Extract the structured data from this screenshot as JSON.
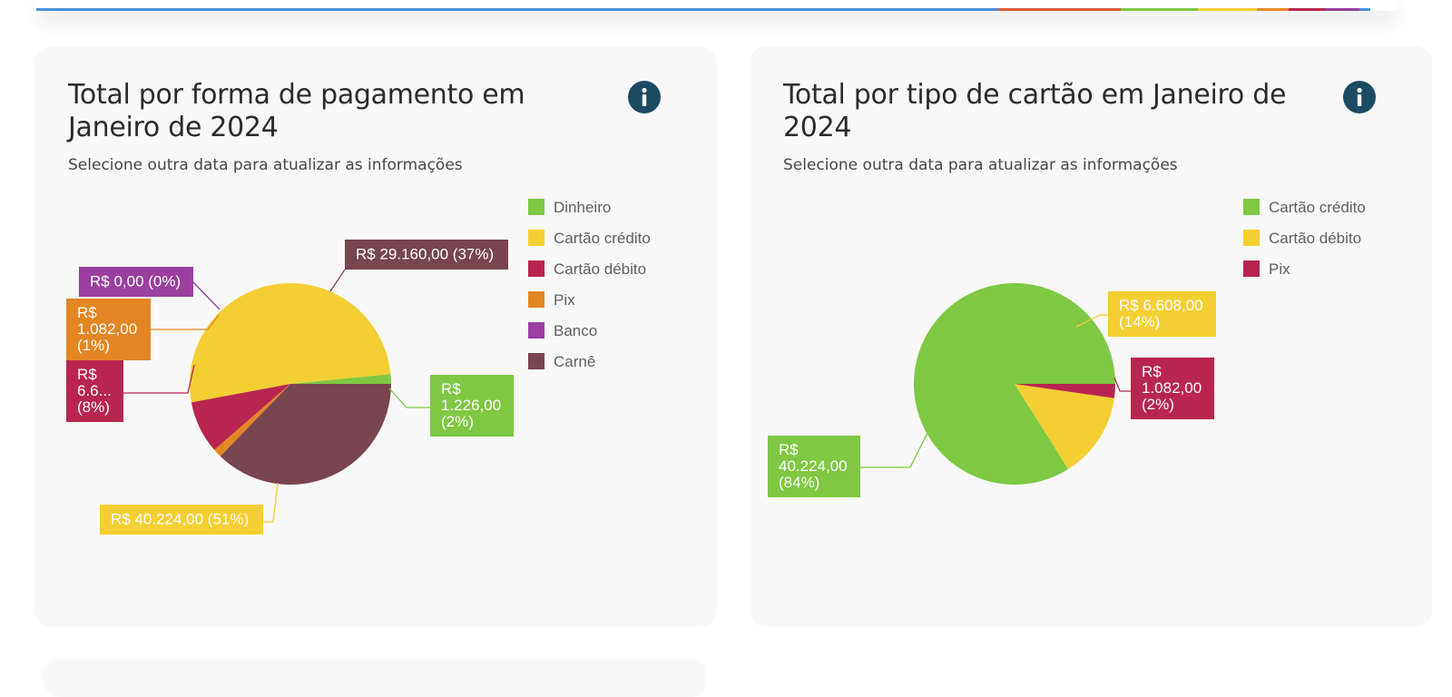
{
  "page": {
    "top_bar_colors": [
      "#4a90d9",
      "#e05a3a",
      "#7ec843",
      "#f4cf33",
      "#e38624",
      "#b8264f",
      "#9a3f9f",
      "#4a90d9"
    ]
  },
  "charts": [
    {
      "title": "Total por forma de pagamento em Janeiro de 2024",
      "subtitle": "Selecione outra data para atualizar as informações",
      "info_icon": "info-icon"
    },
    {
      "title": "Total por tipo de cartão em Janeiro de 2024",
      "subtitle": "Selecione outra data para atualizar as informações",
      "info_icon": "info-icon"
    }
  ],
  "chart_data": [
    {
      "type": "pie",
      "title": "Total por forma de pagamento em Janeiro de 2024",
      "legend_position": "right",
      "slices": [
        {
          "name": "Dinheiro",
          "value": 1226,
          "label_lines": [
            "R$",
            "1.226,00",
            "(2%)"
          ],
          "color": "#7ec843"
        },
        {
          "name": "Cartão crédito",
          "value": 40224,
          "label_lines": [
            "R$ 40.224,00 (51%)"
          ],
          "color": "#f4cf33"
        },
        {
          "name": "Cartão débito",
          "value": 6608,
          "label_lines": [
            "R$",
            "6.6...",
            "(8%)"
          ],
          "color": "#b8264f"
        },
        {
          "name": "Pix",
          "value": 1082,
          "label_lines": [
            "R$",
            "1.082,00",
            "(1%)"
          ],
          "color": "#e38624"
        },
        {
          "name": "Banco",
          "value": 0,
          "label_lines": [
            "R$ 0,00 (0%)"
          ],
          "color": "#9a3f9f"
        },
        {
          "name": "Carnê",
          "value": 29160,
          "label_lines": [
            "R$ 29.160,00 (37%)"
          ],
          "color": "#79454f"
        }
      ]
    },
    {
      "type": "pie",
      "title": "Total por tipo de cartão em Janeiro de 2024",
      "legend_position": "right",
      "slices": [
        {
          "name": "Cartão crédito",
          "value": 40224,
          "label_lines": [
            "R$",
            "40.224,00",
            "(84%)"
          ],
          "color": "#7ec843"
        },
        {
          "name": "Cartão débito",
          "value": 6608,
          "label_lines": [
            "R$ 6.608,00",
            "(14%)"
          ],
          "color": "#f4cf33"
        },
        {
          "name": "Pix",
          "value": 1082,
          "label_lines": [
            "R$",
            "1.082,00",
            "(2%)"
          ],
          "color": "#b8264f"
        }
      ]
    }
  ]
}
